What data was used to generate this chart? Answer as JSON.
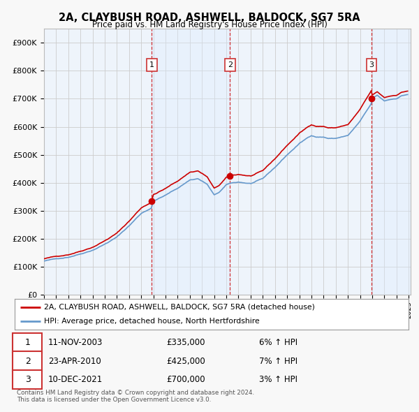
{
  "title": "2A, CLAYBUSH ROAD, ASHWELL, BALDOCK, SG7 5RA",
  "subtitle": "Price paid vs. HM Land Registry's House Price Index (HPI)",
  "ytick_values": [
    0,
    100000,
    200000,
    300000,
    400000,
    500000,
    600000,
    700000,
    800000,
    900000
  ],
  "ylim": [
    0,
    950000
  ],
  "sale_dates": [
    "2003-11-11",
    "2010-04-23",
    "2021-12-10"
  ],
  "sale_prices": [
    335000,
    425000,
    700000
  ],
  "sale_labels": [
    "1",
    "2",
    "3"
  ],
  "transaction_info": [
    {
      "label": "1",
      "date": "11-NOV-2003",
      "price": "£335,000",
      "hpi": "6% ↑ HPI"
    },
    {
      "label": "2",
      "date": "23-APR-2010",
      "price": "£425,000",
      "hpi": "7% ↑ HPI"
    },
    {
      "label": "3",
      "date": "10-DEC-2021",
      "price": "£700,000",
      "hpi": "3% ↑ HPI"
    }
  ],
  "legend_line1": "2A, CLAYBUSH ROAD, ASHWELL, BALDOCK, SG7 5RA (detached house)",
  "legend_line2": "HPI: Average price, detached house, North Hertfordshire",
  "footer1": "Contains HM Land Registry data © Crown copyright and database right 2024.",
  "footer2": "This data is licensed under the Open Government Licence v3.0.",
  "line_color_red": "#cc0000",
  "line_color_blue": "#6699cc",
  "shade_color": "#ddeeff",
  "plot_bg": "#eef4fb",
  "vline_color": "#cc0000",
  "grid_color": "#cccccc",
  "fig_bg": "#f8f8f8"
}
